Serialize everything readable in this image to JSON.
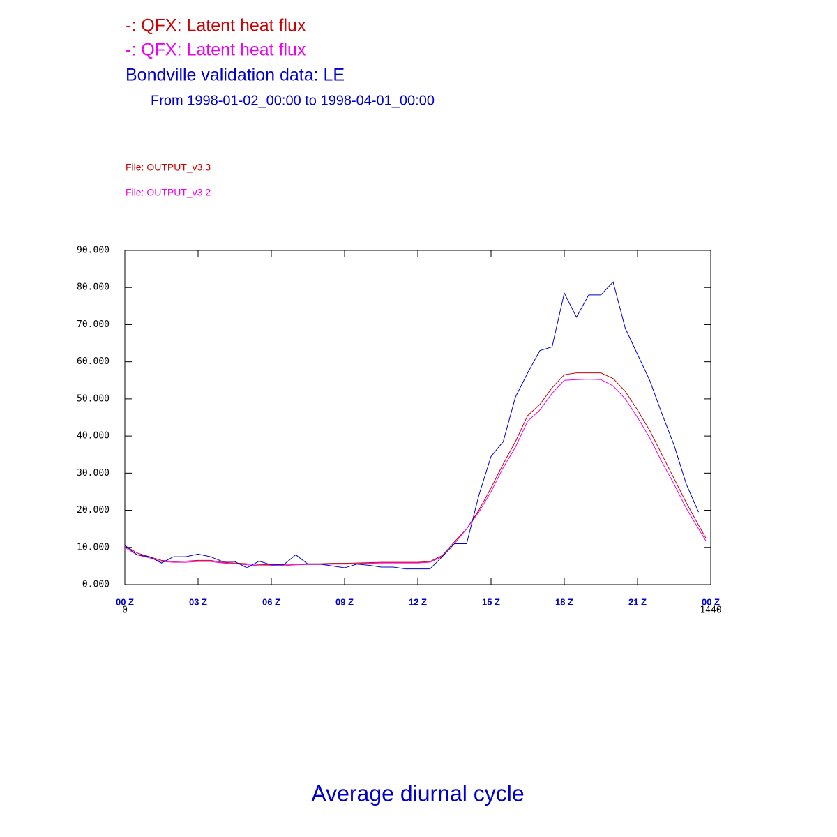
{
  "chart_data": {
    "type": "line",
    "title": "Average diurnal cycle",
    "subtitle": "From 1998-01-02_00:00 to 1998-04-01_00:00",
    "annotations": [
      {
        "text": "File: OUTPUT_v3.3",
        "color": "#cc0000"
      },
      {
        "text": "File: OUTPUT_v3.2",
        "color": "#ee00ee"
      }
    ],
    "xlim": [
      0,
      1440
    ],
    "xticks": [
      {
        "value": 0,
        "label": "00 Z"
      },
      {
        "value": 180,
        "label": "03 Z"
      },
      {
        "value": 360,
        "label": "06 Z"
      },
      {
        "value": 540,
        "label": "09 Z"
      },
      {
        "value": 720,
        "label": "12 Z"
      },
      {
        "value": 900,
        "label": "15 Z"
      },
      {
        "value": 1080,
        "label": "18 Z"
      },
      {
        "value": 1260,
        "label": "21 Z"
      },
      {
        "value": 1440,
        "label": "00 Z"
      }
    ],
    "ylim": [
      0,
      90
    ],
    "yticks": [
      {
        "value": 0,
        "label": "0.000"
      },
      {
        "value": 10,
        "label": "10.000"
      },
      {
        "value": 20,
        "label": "20.000"
      },
      {
        "value": 30,
        "label": "30.000"
      },
      {
        "value": 40,
        "label": "40.000"
      },
      {
        "value": 50,
        "label": "50.000"
      },
      {
        "value": 60,
        "label": "60.000"
      },
      {
        "value": 70,
        "label": "70.000"
      },
      {
        "value": 80,
        "label": "80.000"
      },
      {
        "value": 90,
        "label": "90.000"
      }
    ],
    "series": [
      {
        "name": "-: QFX: Latent heat flux",
        "color": "#cc0000",
        "x": [
          0,
          30,
          60,
          90,
          120,
          150,
          180,
          210,
          240,
          270,
          300,
          330,
          360,
          390,
          420,
          450,
          480,
          510,
          540,
          570,
          600,
          630,
          660,
          690,
          720,
          750,
          780,
          810,
          840,
          870,
          900,
          930,
          960,
          990,
          1020,
          1050,
          1080,
          1110,
          1140,
          1170,
          1200,
          1230,
          1260,
          1290,
          1320,
          1350,
          1380,
          1410,
          1428
        ],
        "values": [
          10.5,
          8.5,
          7.5,
          6.5,
          6.2,
          6.3,
          6.5,
          6.5,
          6,
          5.8,
          5.6,
          5.4,
          5.3,
          5.4,
          5.5,
          5.6,
          5.6,
          5.7,
          5.7,
          5.8,
          5.9,
          6,
          6,
          6,
          6,
          6.2,
          7.8,
          11.5,
          15,
          20,
          26,
          32.5,
          38.5,
          45.5,
          48.5,
          53,
          56.5,
          57,
          57,
          57,
          55.5,
          52,
          47,
          41.5,
          35,
          28.5,
          22,
          16,
          12.5
        ]
      },
      {
        "name": "-: QFX: Latent heat flux",
        "color": "#ee00ee",
        "x": [
          0,
          30,
          60,
          90,
          120,
          150,
          180,
          210,
          240,
          270,
          300,
          330,
          360,
          390,
          420,
          450,
          480,
          510,
          540,
          570,
          600,
          630,
          660,
          690,
          720,
          750,
          780,
          810,
          840,
          870,
          900,
          930,
          960,
          990,
          1020,
          1050,
          1080,
          1110,
          1140,
          1170,
          1200,
          1230,
          1260,
          1290,
          1320,
          1350,
          1380,
          1410,
          1428
        ],
        "values": [
          10,
          8,
          7.2,
          6.2,
          6,
          6,
          6.2,
          6.2,
          5.8,
          5.6,
          5.3,
          5.1,
          5.1,
          5.1,
          5.3,
          5.4,
          5.4,
          5.5,
          5.5,
          5.6,
          5.7,
          5.8,
          5.8,
          5.8,
          5.8,
          6,
          7.5,
          11,
          15,
          19.5,
          25,
          31.5,
          37,
          44,
          47,
          51.5,
          55,
          55.2,
          55.3,
          55.2,
          53.5,
          50,
          45,
          39.5,
          33,
          27,
          20.5,
          15,
          11.8
        ]
      },
      {
        "name": "Bondville validation data: LE",
        "color": "#0000cc",
        "x": [
          0,
          30,
          60,
          90,
          120,
          150,
          180,
          210,
          240,
          270,
          300,
          330,
          360,
          390,
          420,
          450,
          480,
          510,
          540,
          570,
          600,
          630,
          660,
          690,
          720,
          750,
          780,
          810,
          840,
          870,
          900,
          930,
          960,
          990,
          1020,
          1050,
          1080,
          1110,
          1140,
          1170,
          1200,
          1230,
          1260,
          1290,
          1320,
          1350,
          1380,
          1410
        ],
        "values": [
          10.5,
          8,
          7.5,
          5.8,
          7.5,
          7.5,
          8.2,
          7.5,
          6.2,
          6.2,
          4.5,
          6.3,
          5.3,
          5.3,
          8,
          5.5,
          5.5,
          5,
          4.5,
          5.5,
          5.2,
          4.7,
          4.7,
          4.2,
          4.2,
          4.2,
          7.5,
          11,
          11,
          24,
          34.5,
          38.5,
          50.5,
          57,
          63,
          64,
          78.5,
          72,
          78,
          78,
          81.5,
          69,
          62,
          55,
          46,
          37.5,
          27,
          19.5
        ]
      }
    ]
  }
}
